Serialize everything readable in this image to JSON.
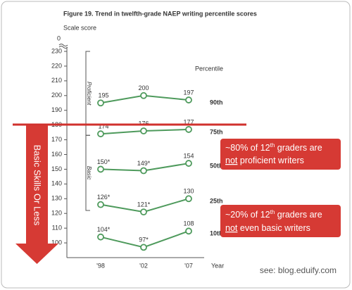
{
  "chart_data": {
    "type": "line",
    "title": "Figure 19.    Trend in twelfth-grade NAEP writing percentile scores",
    "y_label": "Scale score",
    "y_break_label": "0",
    "legend_title": "Percentile",
    "categories": [
      "'98",
      "'02",
      "'07"
    ],
    "x_label": "Year",
    "ylim": [
      90,
      230
    ],
    "yticks": [
      100,
      110,
      120,
      130,
      140,
      150,
      160,
      170,
      180,
      190,
      200,
      210,
      220,
      230
    ],
    "color": "#4e9a5c",
    "bands": [
      {
        "label": "Proficient",
        "from": 173,
        "to": 230
      },
      {
        "label": "Basic",
        "from": 122,
        "to": 173
      }
    ],
    "series": [
      {
        "name": "90th",
        "values": [
          195,
          200,
          197
        ]
      },
      {
        "name": "75th",
        "values": [
          174,
          176,
          177
        ]
      },
      {
        "name": "50th",
        "values": [
          150,
          149,
          154
        ],
        "value_labels": [
          "150*",
          "149*",
          "154"
        ]
      },
      {
        "name": "25th",
        "values": [
          126,
          121,
          130
        ],
        "value_labels": [
          "126*",
          "121*",
          "130"
        ]
      },
      {
        "name": "10th",
        "values": [
          104,
          97,
          108
        ],
        "value_labels": [
          "104*",
          "97*",
          "108"
        ]
      }
    ]
  },
  "annotations": {
    "arrow_text": "Basic Skills Or Less",
    "box1": {
      "line1": [
        "~80% of 12",
        "th",
        " graders are"
      ],
      "line2": [
        "not",
        " proficient writers"
      ]
    },
    "box2": {
      "line1": [
        "~20% of 12",
        "th",
        " graders are"
      ],
      "line2": [
        "not",
        " even basic writers"
      ]
    },
    "source": "see: blog.eduify.com"
  }
}
